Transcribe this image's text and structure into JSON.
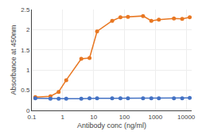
{
  "chart_data": {
    "type": "line",
    "x_label": "Antibody conc (ng/ml)",
    "y_label": "Absorbance at 450nm",
    "x": [
      0.13,
      0.4,
      0.74,
      1.3,
      4.0,
      7.4,
      13,
      40,
      74,
      130,
      400,
      740,
      1300,
      4000,
      7400,
      13000
    ],
    "series": [
      {
        "color": "#E87722",
        "marker": "circle",
        "line_style": "solid",
        "values": [
          0.33,
          0.35,
          0.46,
          0.75,
          1.28,
          1.3,
          1.96,
          2.22,
          2.31,
          2.32,
          2.34,
          2.22,
          2.25,
          2.28,
          2.27,
          2.31
        ]
      },
      {
        "color": "#4472C4",
        "marker": "circle",
        "line_style": "solid",
        "values": [
          0.3,
          0.29,
          0.29,
          0.29,
          0.29,
          0.3,
          0.3,
          0.3,
          0.3,
          0.3,
          0.3,
          0.3,
          0.3,
          0.3,
          0.3,
          0.31
        ]
      }
    ],
    "log": "x",
    "xlim": [
      0.1,
      15000
    ],
    "xticks": [
      0.1,
      1,
      10,
      100,
      1000,
      10000
    ],
    "ylim": [
      0,
      2.5
    ],
    "yticks": [
      0,
      0.5,
      1,
      1.5,
      2,
      2.5
    ],
    "grid": true
  }
}
